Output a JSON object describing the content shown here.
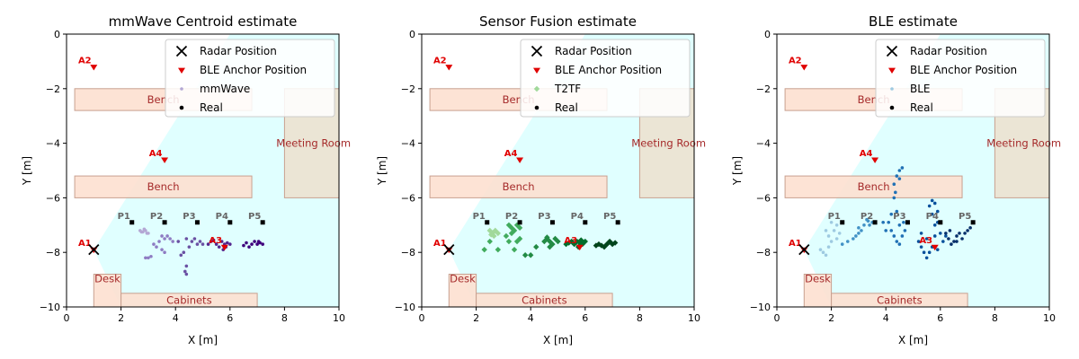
{
  "chart_data": [
    {
      "type": "scatter",
      "title": "mmWave Centroid estimate",
      "xlabel": "X [m]",
      "ylabel": "Y [m]",
      "xlim": [
        0,
        10
      ],
      "ylim": [
        -10,
        0
      ],
      "xticks": [
        "0",
        "2",
        "4",
        "6",
        "8",
        "10"
      ],
      "yticks": [
        "0",
        "−2",
        "−4",
        "−6",
        "−8",
        "−10"
      ],
      "legend": [
        "Radar Position",
        "BLE Anchor Position",
        "mmWave",
        "Real"
      ],
      "legend_placement": "top-right",
      "estimate_colors": [
        "#b3a7d4",
        "#8e7cc3",
        "#6a51a3",
        "#54278f",
        "#3f007d"
      ],
      "estimate_marker": "dot",
      "estimates": [
        [
          [
            2.7,
            -7.2
          ],
          [
            2.8,
            -7.25
          ],
          [
            2.9,
            -7.2
          ],
          [
            3.0,
            -7.3
          ],
          [
            2.85,
            -7.15
          ],
          [
            2.95,
            -7.3
          ],
          [
            2.75,
            -7.25
          ]
        ],
        [
          [
            3.5,
            -7.4
          ],
          [
            3.6,
            -7.5
          ],
          [
            3.4,
            -7.6
          ],
          [
            3.7,
            -7.4
          ],
          [
            3.8,
            -7.5
          ],
          [
            3.9,
            -7.6
          ],
          [
            3.3,
            -7.8
          ],
          [
            3.5,
            -7.9
          ],
          [
            3.6,
            -8.0
          ],
          [
            3.2,
            -7.7
          ],
          [
            2.9,
            -8.2
          ],
          [
            3.0,
            -8.2
          ],
          [
            3.1,
            -8.15
          ]
        ],
        [
          [
            4.4,
            -7.5
          ],
          [
            4.6,
            -7.6
          ],
          [
            4.7,
            -7.5
          ],
          [
            4.8,
            -7.7
          ],
          [
            4.5,
            -7.8
          ],
          [
            4.3,
            -8.0
          ],
          [
            4.2,
            -8.1
          ],
          [
            4.4,
            -8.5
          ],
          [
            4.4,
            -8.8
          ],
          [
            4.35,
            -8.7
          ],
          [
            4.9,
            -7.6
          ],
          [
            5.0,
            -7.7
          ],
          [
            4.1,
            -7.6
          ]
        ],
        [
          [
            5.3,
            -7.6
          ],
          [
            5.5,
            -7.7
          ],
          [
            5.7,
            -7.6
          ],
          [
            5.8,
            -7.7
          ],
          [
            5.9,
            -7.65
          ],
          [
            6.0,
            -7.7
          ],
          [
            5.6,
            -7.8
          ],
          [
            5.4,
            -7.55
          ],
          [
            5.2,
            -7.7
          ],
          [
            5.75,
            -7.9
          ],
          [
            5.85,
            -7.8
          ]
        ],
        [
          [
            6.6,
            -7.65
          ],
          [
            6.8,
            -7.7
          ],
          [
            6.9,
            -7.6
          ],
          [
            7.0,
            -7.7
          ],
          [
            7.1,
            -7.65
          ],
          [
            7.2,
            -7.7
          ],
          [
            6.7,
            -7.8
          ],
          [
            6.5,
            -7.75
          ],
          [
            7.05,
            -7.6
          ]
        ]
      ]
    },
    {
      "type": "scatter",
      "title": "Sensor Fusion estimate",
      "xlabel": "X [m]",
      "ylabel": "Y [m]",
      "xlim": [
        0,
        10
      ],
      "ylim": [
        -10,
        0
      ],
      "xticks": [
        "0",
        "2",
        "4",
        "6",
        "8",
        "10"
      ],
      "yticks": [
        "0",
        "−2",
        "−4",
        "−6",
        "−8",
        "−10"
      ],
      "legend": [
        "Radar Position",
        "BLE Anchor Position",
        "T2TF",
        "Real"
      ],
      "legend_placement": "top-right",
      "estimate_colors": [
        "#a1d99b",
        "#41ab5d",
        "#238b45",
        "#006d2c",
        "#00441b"
      ],
      "estimate_marker": "diamond",
      "estimates": [
        [
          [
            2.5,
            -7.2
          ],
          [
            2.6,
            -7.3
          ],
          [
            2.7,
            -7.2
          ],
          [
            2.8,
            -7.3
          ],
          [
            2.65,
            -7.4
          ],
          [
            2.55,
            -7.35
          ]
        ],
        [
          [
            3.2,
            -7.0
          ],
          [
            3.3,
            -7.1
          ],
          [
            3.4,
            -7.2
          ],
          [
            3.5,
            -7.0
          ],
          [
            3.6,
            -7.1
          ],
          [
            3.1,
            -7.4
          ],
          [
            3.2,
            -7.6
          ],
          [
            3.5,
            -7.6
          ],
          [
            3.6,
            -7.5
          ],
          [
            3.4,
            -7.9
          ],
          [
            2.5,
            -7.6
          ],
          [
            2.8,
            -7.9
          ],
          [
            2.3,
            -7.9
          ],
          [
            3.3,
            -7.3
          ]
        ],
        [
          [
            4.6,
            -7.5
          ],
          [
            4.7,
            -7.6
          ],
          [
            4.8,
            -7.7
          ],
          [
            4.9,
            -7.5
          ],
          [
            5.0,
            -7.6
          ],
          [
            4.7,
            -7.8
          ],
          [
            4.5,
            -7.6
          ],
          [
            4.2,
            -7.8
          ],
          [
            4.0,
            -8.1
          ],
          [
            3.8,
            -8.1
          ],
          [
            4.6,
            -7.45
          ]
        ],
        [
          [
            5.5,
            -7.6
          ],
          [
            5.6,
            -7.7
          ],
          [
            5.7,
            -7.6
          ],
          [
            5.8,
            -7.65
          ],
          [
            5.9,
            -7.7
          ],
          [
            6.0,
            -7.6
          ],
          [
            5.4,
            -7.65
          ],
          [
            5.3,
            -7.7
          ],
          [
            5.75,
            -7.8
          ],
          [
            5.85,
            -7.55
          ]
        ],
        [
          [
            6.5,
            -7.7
          ],
          [
            6.6,
            -7.75
          ],
          [
            6.8,
            -7.7
          ],
          [
            6.9,
            -7.6
          ],
          [
            7.0,
            -7.7
          ],
          [
            7.1,
            -7.65
          ],
          [
            6.7,
            -7.8
          ],
          [
            6.4,
            -7.75
          ]
        ]
      ]
    },
    {
      "type": "scatter",
      "title": "BLE estimate",
      "xlabel": "X [m]",
      "ylabel": "Y [m]",
      "xlim": [
        0,
        10
      ],
      "ylim": [
        -10,
        0
      ],
      "xticks": [
        "0",
        "2",
        "4",
        "6",
        "8",
        "10"
      ],
      "yticks": [
        "0",
        "−2",
        "−4",
        "−6",
        "−8",
        "−10"
      ],
      "legend": [
        "Radar Position",
        "BLE Anchor Position",
        "BLE",
        "Real"
      ],
      "legend_placement": "top-right",
      "estimate_colors": [
        "#9ecae1",
        "#4292c6",
        "#2171b5",
        "#08519c",
        "#08306b"
      ],
      "estimate_marker": "dot",
      "estimates": [
        [
          [
            1.6,
            -7.9
          ],
          [
            1.7,
            -8.0
          ],
          [
            1.8,
            -8.1
          ],
          [
            1.9,
            -7.8
          ],
          [
            2.0,
            -7.6
          ],
          [
            2.1,
            -7.2
          ],
          [
            2.2,
            -7.0
          ],
          [
            2.0,
            -6.9
          ],
          [
            1.8,
            -7.2
          ],
          [
            1.9,
            -7.4
          ],
          [
            2.2,
            -7.5
          ],
          [
            2.3,
            -7.3
          ]
        ],
        [
          [
            2.4,
            -7.7
          ],
          [
            2.6,
            -7.6
          ],
          [
            2.8,
            -7.5
          ],
          [
            3.0,
            -7.3
          ],
          [
            3.2,
            -7.0
          ],
          [
            3.3,
            -6.8
          ],
          [
            3.4,
            -7.0
          ],
          [
            3.5,
            -6.9
          ],
          [
            3.1,
            -7.2
          ],
          [
            2.9,
            -7.4
          ],
          [
            3.0,
            -7.1
          ],
          [
            3.35,
            -6.85
          ]
        ],
        [
          [
            4.1,
            -6.9
          ],
          [
            4.2,
            -7.2
          ],
          [
            4.3,
            -7.4
          ],
          [
            4.4,
            -7.6
          ],
          [
            4.5,
            -7.7
          ],
          [
            4.6,
            -7.4
          ],
          [
            4.5,
            -7.0
          ],
          [
            4.4,
            -6.5
          ],
          [
            4.3,
            -6.0
          ],
          [
            4.3,
            -5.5
          ],
          [
            4.4,
            -5.2
          ],
          [
            4.5,
            -5.0
          ],
          [
            4.6,
            -4.9
          ],
          [
            4.5,
            -5.3
          ],
          [
            4.35,
            -5.8
          ],
          [
            4.2,
            -6.6
          ],
          [
            4.0,
            -7.2
          ],
          [
            3.9,
            -6.9
          ],
          [
            4.7,
            -7.2
          ],
          [
            4.65,
            -6.9
          ]
        ],
        [
          [
            5.2,
            -7.6
          ],
          [
            5.3,
            -7.8
          ],
          [
            5.4,
            -8.0
          ],
          [
            5.5,
            -8.2
          ],
          [
            5.6,
            -8.0
          ],
          [
            5.7,
            -7.8
          ],
          [
            5.8,
            -7.4
          ],
          [
            5.8,
            -7.0
          ],
          [
            5.7,
            -6.6
          ],
          [
            5.6,
            -6.3
          ],
          [
            5.7,
            -6.1
          ],
          [
            5.8,
            -6.2
          ],
          [
            5.9,
            -6.5
          ],
          [
            5.9,
            -6.9
          ],
          [
            6.0,
            -7.3
          ],
          [
            6.1,
            -7.6
          ],
          [
            6.2,
            -7.4
          ],
          [
            5.9,
            -7.9
          ],
          [
            5.5,
            -7.5
          ],
          [
            5.3,
            -7.3
          ]
        ],
        [
          [
            6.3,
            -7.5
          ],
          [
            6.4,
            -7.7
          ],
          [
            6.5,
            -7.6
          ],
          [
            6.6,
            -7.4
          ],
          [
            6.7,
            -7.3
          ],
          [
            6.8,
            -7.5
          ],
          [
            6.9,
            -7.3
          ],
          [
            7.0,
            -7.2
          ],
          [
            7.1,
            -7.1
          ],
          [
            6.6,
            -7.6
          ],
          [
            6.2,
            -7.3
          ],
          [
            6.35,
            -7.2
          ]
        ]
      ]
    }
  ],
  "environment": {
    "radar_position": [
      1.0,
      -7.9
    ],
    "coverage_color": "#e0ffff",
    "anchors": [
      {
        "label": "A1",
        "x": 1.0,
        "y": -7.9
      },
      {
        "label": "A2",
        "x": 1.0,
        "y": -1.2
      },
      {
        "label": "A4",
        "x": 3.6,
        "y": -4.6
      },
      {
        "label": "A3",
        "x": 5.8,
        "y": -7.8
      }
    ],
    "anchor_color": "#e00000",
    "real_points": [
      {
        "label": "P1",
        "x": 2.4,
        "y": -6.9
      },
      {
        "label": "P2",
        "x": 3.6,
        "y": -6.9
      },
      {
        "label": "P3",
        "x": 4.8,
        "y": -6.9
      },
      {
        "label": "P4",
        "x": 6.0,
        "y": -6.9
      },
      {
        "label": "P5",
        "x": 7.2,
        "y": -6.9
      }
    ],
    "regions": [
      {
        "label": "Bench",
        "x0": 0.3,
        "x1": 6.8,
        "y0": -2.0,
        "y1": -2.8,
        "fill": "#fde0d0"
      },
      {
        "label": "Bench",
        "x0": 0.3,
        "x1": 6.8,
        "y0": -5.2,
        "y1": -6.0,
        "fill": "#fde0d0"
      },
      {
        "label": "Meeting Room",
        "x0": 8.0,
        "x1": 10.0,
        "y0": -2.0,
        "y1": -6.0,
        "fill": "#ece2d0"
      },
      {
        "label": "Desk",
        "x0": 1.0,
        "x1": 2.0,
        "y0": -8.8,
        "y1": -10.0,
        "fill": "#fde0d0"
      },
      {
        "label": "Cabinets",
        "x0": 2.0,
        "x1": 7.0,
        "y0": -9.5,
        "y1": -10.0,
        "fill": "#fde0d0"
      }
    ]
  }
}
